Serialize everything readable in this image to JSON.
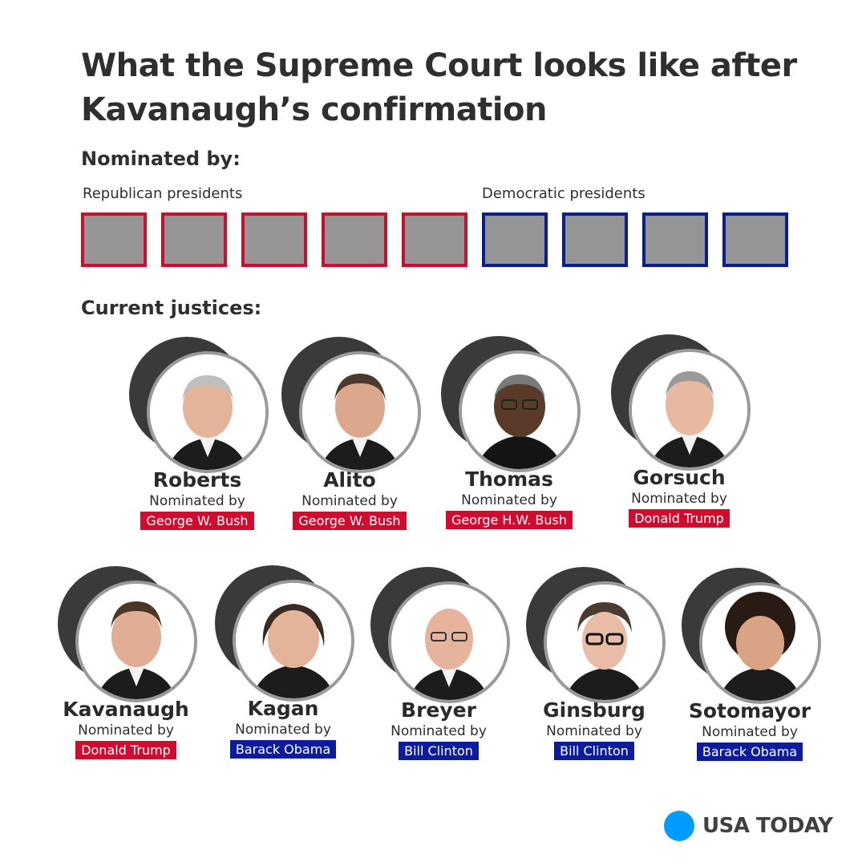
{
  "title": "What the Supreme Court looks like after Kavanaugh’s confirmation",
  "nominated_by_heading": "Nominated by:",
  "groups": {
    "republican_label": "Republican presidents",
    "democratic_label": "Democratic presidents"
  },
  "seats": {
    "republican_count": 5,
    "democratic_count": 4,
    "republican_color": "#c8102e",
    "democratic_color": "#0b1e8f",
    "fill_color": "#959595"
  },
  "current_justices_heading": "Current justices:",
  "justices": [
    {
      "name": "Roberts",
      "nominated_label": "Nominated by",
      "president": "George W. Bush",
      "party": "rep"
    },
    {
      "name": "Alito",
      "nominated_label": "Nominated by",
      "president": "George W. Bush",
      "party": "rep"
    },
    {
      "name": "Thomas",
      "nominated_label": "Nominated by",
      "president": "George H.W. Bush",
      "party": "rep"
    },
    {
      "name": "Gorsuch",
      "nominated_label": "Nominated by",
      "president": "Donald Trump",
      "party": "rep"
    },
    {
      "name": "Kavanaugh",
      "nominated_label": "Nominated by",
      "president": "Donald Trump",
      "party": "rep"
    },
    {
      "name": "Kagan",
      "nominated_label": "Nominated by",
      "president": "Barack Obama",
      "party": "dem"
    },
    {
      "name": "Breyer",
      "nominated_label": "Nominated by",
      "president": "Bill Clinton",
      "party": "dem"
    },
    {
      "name": "Ginsburg",
      "nominated_label": "Nominated by",
      "president": "Bill Clinton",
      "party": "dem"
    },
    {
      "name": "Sotomayor",
      "nominated_label": "Nominated by",
      "president": "Barack Obama",
      "party": "dem"
    }
  ],
  "logo": {
    "text": "USA TODAY",
    "dot_color": "#009bff"
  }
}
